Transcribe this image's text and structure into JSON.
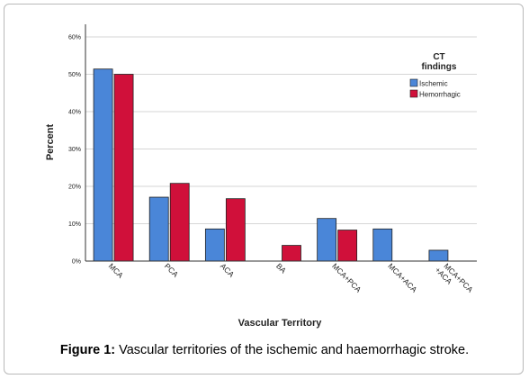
{
  "chart_data": {
    "type": "bar",
    "xlabel": "Vascular Territory",
    "ylabel": "Percent",
    "ylim": [
      0,
      60
    ],
    "yticks": [
      "0%",
      "10%",
      "20%",
      "30%",
      "40%",
      "50%",
      "60%"
    ],
    "categories": [
      "MCA",
      "PCA",
      "ACA",
      "BA",
      "MCA+PCA",
      "MCA+ACA",
      "MCA+PCA +ACA"
    ],
    "series": [
      {
        "name": "Ischemic",
        "color": "#4a86d8",
        "values": [
          51.4,
          17.1,
          8.6,
          0,
          11.4,
          8.6,
          2.9
        ]
      },
      {
        "name": "Hemorrhagic",
        "color": "#d0103a",
        "values": [
          50.0,
          20.8,
          16.7,
          4.2,
          8.3,
          0,
          0
        ]
      }
    ],
    "legend": {
      "title": "CT findings",
      "placement": "top-right"
    },
    "grid": true
  },
  "caption": {
    "label": "Figure 1:",
    "text": " Vascular territories of the ischemic and haemorrhagic stroke."
  }
}
